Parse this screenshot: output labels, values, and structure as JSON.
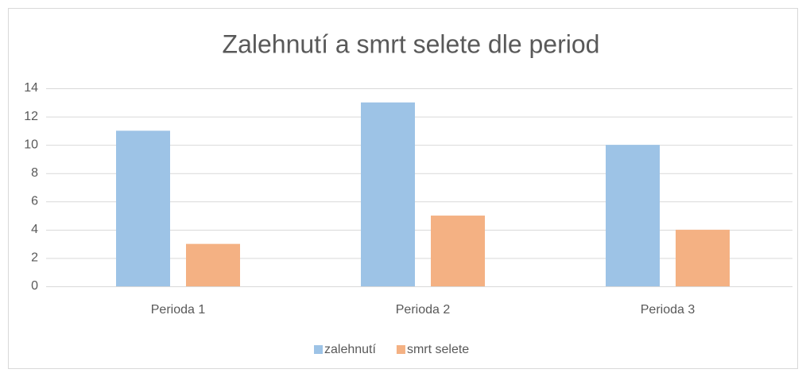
{
  "chart_data": {
    "type": "bar",
    "title": "Zalehnutí a smrt selete dle period",
    "categories": [
      "Perioda 1",
      "Perioda 2",
      "Perioda 3"
    ],
    "series": [
      {
        "name": "zalehnutí",
        "color": "#9dc3e6",
        "values": [
          11,
          13,
          10
        ]
      },
      {
        "name": "smrt selete",
        "color": "#f4b183",
        "values": [
          3,
          5,
          4
        ]
      }
    ],
    "ylim": [
      0,
      14
    ],
    "yticks": [
      0,
      2,
      4,
      6,
      8,
      10,
      12,
      14
    ],
    "grid": true,
    "legend": "bottom"
  }
}
